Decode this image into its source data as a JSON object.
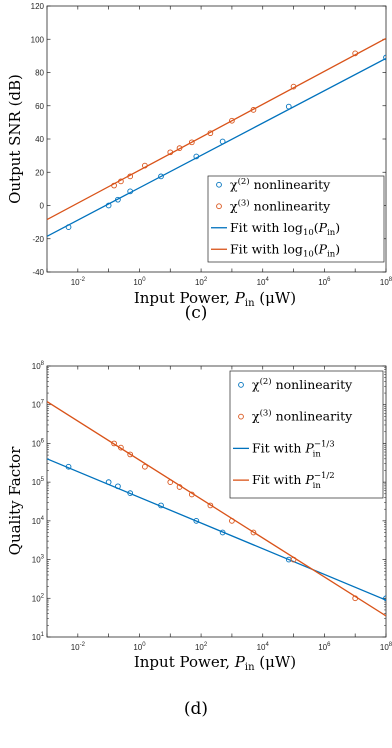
{
  "colors": {
    "blue": "#0072BD",
    "orange": "#D95319",
    "axis": "#262626"
  },
  "chart_data": [
    {
      "type": "line",
      "panel_label": "(c)",
      "xlabel": "Input Power, P_in (μW)",
      "xlabel_parts": {
        "main": "Input Power, ",
        "var": "P",
        "sub": "in",
        "unit": " (μW)"
      },
      "ylabel": "Output SNR (dB)",
      "xscale": "log",
      "xlim": [
        0.001,
        100000000
      ],
      "ylim": [
        -40,
        120
      ],
      "xticks": [
        0.01,
        1,
        100,
        10000,
        1000000,
        100000000
      ],
      "xtick_labels": [
        {
          "base": "10",
          "exp": "-2"
        },
        {
          "base": "10",
          "exp": "0"
        },
        {
          "base": "10",
          "exp": "2"
        },
        {
          "base": "10",
          "exp": "4"
        },
        {
          "base": "10",
          "exp": "6"
        },
        {
          "base": "10",
          "exp": "8"
        }
      ],
      "yticks": [
        -40,
        -20,
        0,
        20,
        40,
        60,
        80,
        100,
        120
      ],
      "ytick_labels": [
        "-40",
        "-20",
        "0",
        "20",
        "40",
        "60",
        "80",
        "100",
        "120"
      ],
      "grid": false,
      "legend_position": "lower-right",
      "series": [
        {
          "name": "χ(2) nonlinearity",
          "kind": "scatter",
          "color_key": "blue",
          "x": [
            0.005,
            0.1,
            0.2,
            0.5,
            5,
            70,
            500,
            70000,
            100000000
          ],
          "y": [
            -13,
            0,
            3.5,
            8.5,
            17.5,
            29.5,
            38.5,
            59.5,
            89
          ]
        },
        {
          "name": "χ(3) nonlinearity",
          "kind": "scatter",
          "color_key": "orange",
          "x": [
            0.15,
            0.25,
            0.5,
            1.5,
            10,
            20,
            50,
            200,
            1000,
            5000,
            100000,
            10000000
          ],
          "y": [
            12,
            14.5,
            17.5,
            24,
            32,
            34.5,
            38,
            43.5,
            51,
            57.5,
            71.5,
            91.5
          ]
        },
        {
          "name": "Fit with log10(Pin)",
          "kind": "line",
          "color_key": "blue",
          "x": [
            0.001,
            100000000
          ],
          "y": [
            -18.5,
            88.5
          ]
        },
        {
          "name": "Fit with log10(Pin)",
          "kind": "line",
          "color_key": "orange",
          "x": [
            0.001,
            100000000
          ],
          "y": [
            -8.5,
            100.5
          ]
        }
      ],
      "legend": [
        {
          "kind": "marker",
          "color_key": "blue",
          "parts": {
            "pre": "χ",
            "sup": "(2)",
            "post": " nonlinearity"
          }
        },
        {
          "kind": "marker",
          "color_key": "orange",
          "parts": {
            "pre": "χ",
            "sup": "(3)",
            "post": " nonlinearity"
          }
        },
        {
          "kind": "line",
          "color_key": "blue",
          "parts": {
            "pre": "Fit with log",
            "sub": "10",
            "mid": "(",
            "var": "P",
            "vsub": "in",
            "post": ")"
          }
        },
        {
          "kind": "line",
          "color_key": "orange",
          "parts": {
            "pre": "Fit with log",
            "sub": "10",
            "mid": "(",
            "var": "P",
            "vsub": "in",
            "post": ")"
          }
        }
      ]
    },
    {
      "type": "line",
      "panel_label": "(d)",
      "xlabel": "Input Power, P_in (μW)",
      "xlabel_parts": {
        "main": "Input Power, ",
        "var": "P",
        "sub": "in",
        "unit": " (μW)"
      },
      "ylabel": "Quality Factor",
      "xscale": "log",
      "yscale": "log",
      "xlim": [
        0.001,
        100000000
      ],
      "ylim": [
        10,
        100000000
      ],
      "xticks": [
        0.01,
        1,
        100,
        10000,
        1000000,
        100000000
      ],
      "xtick_labels": [
        {
          "base": "10",
          "exp": "-2"
        },
        {
          "base": "10",
          "exp": "0"
        },
        {
          "base": "10",
          "exp": "2"
        },
        {
          "base": "10",
          "exp": "4"
        },
        {
          "base": "10",
          "exp": "6"
        },
        {
          "base": "10",
          "exp": "8"
        }
      ],
      "yticks": [
        10,
        100,
        1000,
        10000,
        100000,
        1000000,
        10000000,
        100000000
      ],
      "ytick_labels": [
        {
          "base": "10",
          "exp": "1"
        },
        {
          "base": "10",
          "exp": "2"
        },
        {
          "base": "10",
          "exp": "3"
        },
        {
          "base": "10",
          "exp": "4"
        },
        {
          "base": "10",
          "exp": "5"
        },
        {
          "base": "10",
          "exp": "6"
        },
        {
          "base": "10",
          "exp": "7"
        },
        {
          "base": "10",
          "exp": "8"
        }
      ],
      "grid": false,
      "legend_position": "top-right",
      "series": [
        {
          "name": "χ(2) nonlinearity",
          "kind": "scatter",
          "color_key": "blue",
          "x": [
            0.005,
            0.1,
            0.2,
            0.5,
            5,
            70,
            500,
            70000,
            100000000
          ],
          "y": [
            250000,
            100000,
            78000,
            52000,
            25000,
            10000,
            5000,
            1000,
            100
          ]
        },
        {
          "name": "χ(3) nonlinearity",
          "kind": "scatter",
          "color_key": "orange",
          "x": [
            0.15,
            0.25,
            0.5,
            1.5,
            10,
            20,
            50,
            200,
            1000,
            5000,
            100000,
            10000000
          ],
          "y": [
            1000000,
            780000,
            520000,
            250000,
            100000,
            75000,
            48000,
            25000,
            10000,
            5000,
            1000,
            100
          ]
        },
        {
          "name": "Fit with Pin^-1/3",
          "kind": "line",
          "color_key": "blue",
          "x": [
            0.001,
            100000000
          ],
          "y": [
            400000,
            90
          ]
        },
        {
          "name": "Fit with Pin^-1/2",
          "kind": "line",
          "color_key": "orange",
          "x": [
            0.001,
            100000000
          ],
          "y": [
            12000000,
            35
          ]
        }
      ],
      "legend": [
        {
          "kind": "marker",
          "color_key": "blue",
          "parts": {
            "pre": "χ",
            "sup": "(2)",
            "post": " nonlinearity"
          }
        },
        {
          "kind": "marker",
          "color_key": "orange",
          "parts": {
            "pre": "χ",
            "sup": "(3)",
            "post": " nonlinearity"
          }
        },
        {
          "kind": "line",
          "color_key": "blue",
          "parts": {
            "pre": "Fit with ",
            "var": "P",
            "vsub": "in",
            "vsup": "−1/3"
          }
        },
        {
          "kind": "line",
          "color_key": "orange",
          "parts": {
            "pre": "Fit with ",
            "var": "P",
            "vsub": "in",
            "vsup": "−1/2"
          }
        }
      ]
    }
  ]
}
